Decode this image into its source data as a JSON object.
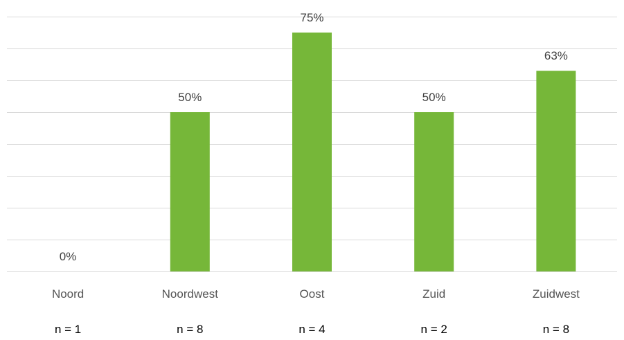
{
  "chart_data": {
    "type": "bar",
    "title": "",
    "xlabel": "",
    "ylabel": "",
    "categories": [
      "Noord",
      "Noordwest",
      "Oost",
      "Zuid",
      "Zuidwest"
    ],
    "values": [
      0,
      50,
      75,
      50,
      63
    ],
    "data_labels": [
      "0%",
      "50%",
      "75%",
      "50%",
      "63%"
    ],
    "sample_sizes": [
      "n = 1",
      "n = 8",
      "n = 4",
      "n = 2",
      "n = 8"
    ],
    "ylim": [
      0,
      80
    ],
    "gridlines": true,
    "legend": "none",
    "bar_color": "#76b739",
    "grid_color": "#d9d9d9"
  }
}
